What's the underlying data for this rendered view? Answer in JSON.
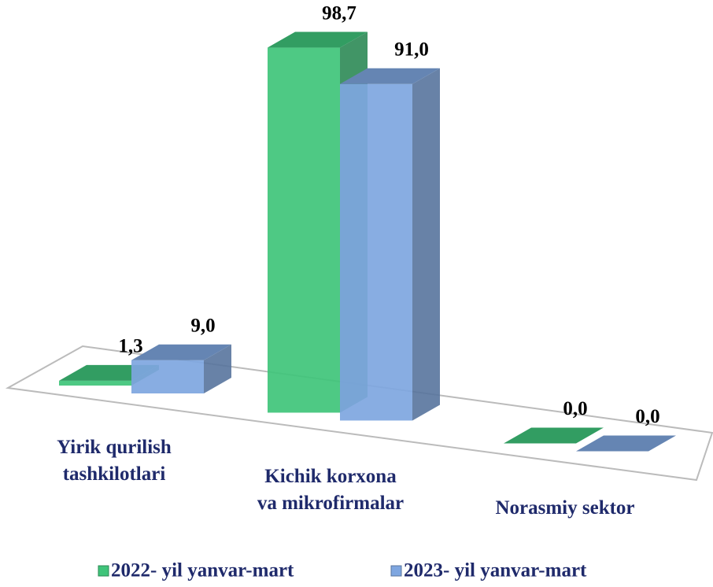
{
  "chart_data": {
    "type": "bar3d",
    "categories": [
      "Yirik qurilish\ntashkilotlari",
      "Kichik korxona\nva mikrofirmalar",
      "Norasmiy sektor"
    ],
    "series": [
      {
        "name": "2022- yil yanvar-mart",
        "color": "#3fc47a",
        "values": [
          1.3,
          98.7,
          0.0
        ],
        "value_labels": [
          "1,3",
          "98,7",
          "0,0"
        ]
      },
      {
        "name": "2023- yil yanvar-mart",
        "color": "#7ea6e0",
        "values": [
          9.0,
          91.0,
          0.0
        ],
        "value_labels": [
          "9,0",
          "91,0",
          "0,0"
        ]
      }
    ],
    "legend": "bottom"
  }
}
